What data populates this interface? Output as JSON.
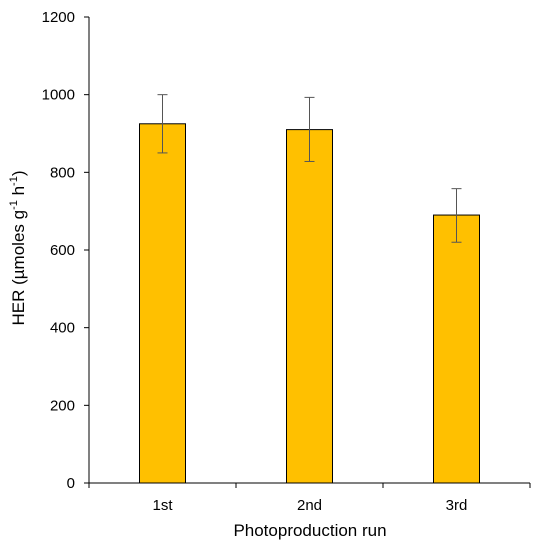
{
  "chart_data": {
    "type": "bar",
    "categories": [
      "1st",
      "2nd",
      "3rd"
    ],
    "values": [
      925,
      910,
      690
    ],
    "error_upper": [
      1000,
      993,
      758
    ],
    "error_lower": [
      850,
      828,
      620
    ],
    "xlabel": "Photoproduction run",
    "ylabel": {
      "pre": "HER (µmoles g",
      "sup1": "-1",
      "mid": " h",
      "sup2": "-1",
      "post": ")"
    },
    "ylim": [
      0,
      1200
    ],
    "yticks": [
      0,
      200,
      400,
      600,
      800,
      1000,
      1200
    ],
    "grid": false,
    "bar_color": "#FFC000",
    "bar_stroke": "#000000",
    "error_color": "#555555"
  }
}
